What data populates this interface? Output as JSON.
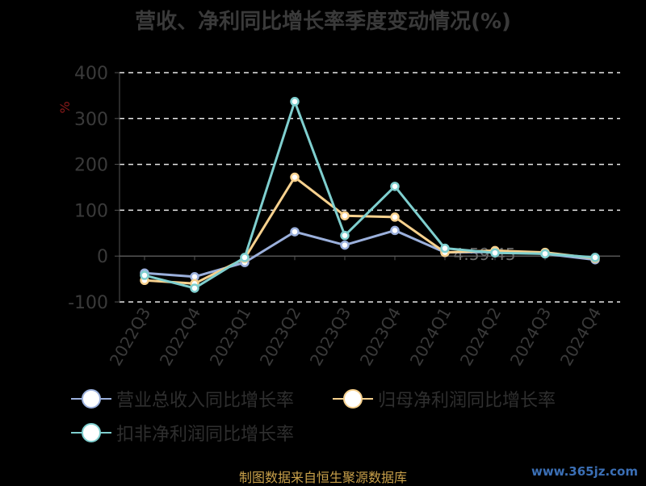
{
  "chart_data": {
    "type": "line",
    "title": "营收、净利同比增长率季度变动情况(%)",
    "ylabel": "%",
    "ylim": [
      -100,
      400
    ],
    "yticks": [
      400,
      300,
      200,
      100,
      0,
      -100
    ],
    "grid": true,
    "legend_position": "bottom",
    "categories": [
      "2022Q3",
      "2022Q4",
      "2023Q1",
      "2023Q2",
      "2023Q3",
      "2023Q4",
      "2024Q1",
      "2024Q2",
      "2024Q3",
      "2024Q4"
    ],
    "series": [
      {
        "name": "营业总收入同比增长率",
        "color": "#9bb0dc",
        "values": [
          -37,
          -45,
          -14,
          53,
          24,
          56,
          8,
          9,
          5,
          -8
        ]
      },
      {
        "name": "归母净利润同比增长率",
        "color": "#f7d18e",
        "values": [
          -53,
          -60,
          -5,
          172,
          88,
          85,
          8,
          12,
          8,
          -5
        ]
      },
      {
        "name": "扣非净利润同比增长率",
        "color": "#7fcfcf",
        "values": [
          -42,
          -70,
          -3,
          337,
          45,
          152,
          17,
          7,
          5,
          -3
        ]
      }
    ],
    "annotation_text": "4:59:45"
  },
  "footer": {
    "source": "制图数据来自恒生聚源数据库",
    "watermark": "www.365jz.com"
  }
}
